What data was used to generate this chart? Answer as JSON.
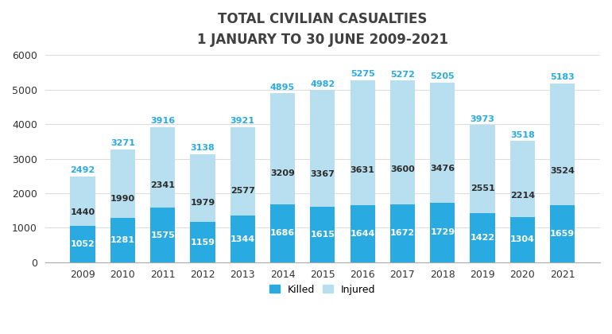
{
  "years": [
    "2009",
    "2010",
    "2011",
    "2012",
    "2013",
    "2014",
    "2015",
    "2016",
    "2017",
    "2018",
    "2019",
    "2020",
    "2021"
  ],
  "killed": [
    1052,
    1281,
    1575,
    1159,
    1344,
    1686,
    1615,
    1644,
    1672,
    1729,
    1422,
    1304,
    1659
  ],
  "injured": [
    1440,
    1990,
    2341,
    1979,
    2577,
    3209,
    3367,
    3631,
    3600,
    3476,
    2551,
    2214,
    3524
  ],
  "total": [
    2492,
    3271,
    3916,
    3138,
    3921,
    4895,
    4982,
    5275,
    5272,
    5205,
    3973,
    3518,
    5183
  ],
  "killed_color": "#29ABE2",
  "injured_color": "#B8DFF0",
  "title_line1": "TOTAL CIVILIAN CASUALTIES",
  "title_line2": "1 JANUARY TO 30 JUNE 2009-2021",
  "ylim": [
    0,
    6000
  ],
  "yticks": [
    0,
    1000,
    2000,
    3000,
    4000,
    5000,
    6000
  ],
  "legend_killed": "Killed",
  "legend_injured": "Injured",
  "background_color": "#FFFFFF",
  "title_color": "#404040",
  "bar_label_color_killed": "#FFFFFF",
  "bar_label_color_injured": "#2C2C2C",
  "bar_label_color_total": "#29ABE2",
  "title_fontsize": 12,
  "label_fontsize": 8,
  "grid_color": "#DDDDDD"
}
